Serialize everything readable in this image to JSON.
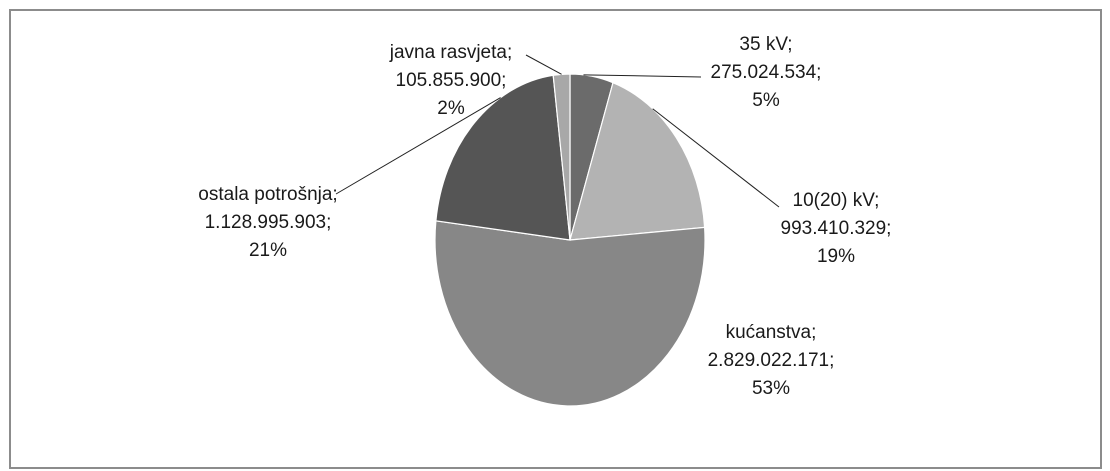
{
  "chart_data": {
    "type": "pie",
    "slices": [
      {
        "name": "35 kV",
        "value": 275024534,
        "value_label": "275.024.534",
        "percent_label": "5%",
        "color": "#6b6b6b"
      },
      {
        "name": "10(20) kV",
        "value": 993410329,
        "value_label": "993.410.329",
        "percent_label": "19%",
        "color": "#b3b3b3"
      },
      {
        "name": "kućanstva",
        "value": 2829022171,
        "value_label": "2.829.022.171",
        "percent_label": "53%",
        "color": "#878787"
      },
      {
        "name": "ostala potrošnja",
        "value": 1128995903,
        "value_label": "1.128.995.903",
        "percent_label": "21%",
        "color": "#555555"
      },
      {
        "name": "javna rasvjeta",
        "value": 105855900,
        "value_label": "105.855.900",
        "percent_label": "2%",
        "color": "#a8a8a8"
      }
    ],
    "labels": {
      "kv35": {
        "name": "35 kV;",
        "value": "275.024.534;",
        "percent": "5%"
      },
      "kv10": {
        "name": "10(20) kV;",
        "value": "993.410.329;",
        "percent": "19%"
      },
      "kucanstva": {
        "name": "kućanstva;",
        "value": "2.829.022.171;",
        "percent": "53%"
      },
      "ostala": {
        "name": "ostala potrošnja;",
        "value": "1.128.995.903;",
        "percent": "21%"
      },
      "javna": {
        "name": "javna rasvjeta;",
        "value": "105.855.900;",
        "percent": "2%"
      }
    },
    "start_position": "top (12 o'clock), clockwise",
    "legend": "none (data labels)"
  }
}
